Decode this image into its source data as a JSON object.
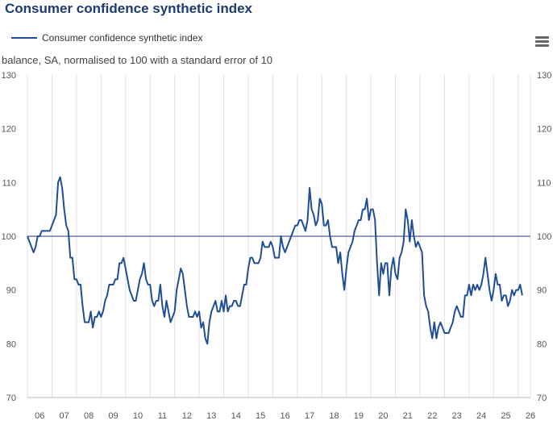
{
  "title": "Consumer confidence synthetic index",
  "subtitle": "balance, SA, normalised to 100 with a standard error of 10",
  "legend": {
    "label": "Consumer confidence synthetic index"
  },
  "menu": {
    "icon": "hamburger-menu-icon"
  },
  "colors": {
    "series": "#1f4e96",
    "grid": "#e2e2e2",
    "reference": "#1f3b73"
  },
  "chart_data": {
    "type": "line",
    "title": "Consumer confidence synthetic index",
    "ylabel": "balance, SA, normalised to 100 with a standard error of 10",
    "ylim": [
      70,
      130
    ],
    "yticks": [
      70,
      80,
      90,
      100,
      110,
      120,
      130
    ],
    "xlim": [
      2006,
      2026.5
    ],
    "xtick_labels": [
      "06",
      "07",
      "08",
      "09",
      "10",
      "11",
      "12",
      "13",
      "14",
      "15",
      "16",
      "17",
      "18",
      "19",
      "20",
      "21",
      "22",
      "23",
      "24",
      "25",
      "26"
    ],
    "reference_line": 100,
    "grid": "vertical",
    "legend_position": "top-left",
    "series": [
      {
        "name": "Consumer confidence synthetic index",
        "x_start": 2006.0,
        "x_step_months": 1,
        "values": [
          100,
          99,
          98,
          97,
          98,
          100,
          100,
          101,
          101,
          101,
          101,
          101,
          102,
          103,
          104,
          110,
          111,
          109,
          105,
          102,
          101,
          96,
          96,
          92,
          92,
          91,
          91,
          87,
          84,
          84,
          84,
          86,
          83,
          85,
          85,
          86,
          85,
          86,
          88,
          89,
          91,
          91,
          91,
          92,
          92,
          95,
          95,
          96,
          94,
          92,
          90,
          89,
          88,
          88,
          90,
          92,
          93,
          95,
          92,
          91,
          91,
          88,
          87,
          88,
          88,
          91,
          87,
          85,
          88,
          86,
          84,
          85,
          86,
          90,
          92,
          94,
          93,
          90,
          87,
          85,
          85,
          85,
          86,
          85,
          86,
          83,
          84,
          81,
          80,
          84,
          86,
          87,
          88,
          86,
          86,
          88,
          86,
          89,
          86,
          87,
          87,
          88,
          88,
          87,
          87,
          89,
          91,
          91,
          94,
          96,
          96,
          95,
          95,
          95,
          96,
          99,
          98,
          98,
          98,
          99,
          98,
          96,
          96,
          96,
          100,
          98,
          97,
          98,
          99,
          100,
          101,
          102,
          102,
          103,
          103,
          102,
          101,
          103,
          109,
          105,
          104,
          102,
          103,
          107,
          106,
          102,
          102,
          103,
          100,
          98,
          98,
          98,
          95,
          97,
          93,
          90,
          94,
          97,
          98,
          99,
          101,
          102,
          103,
          103,
          105,
          105,
          107,
          103,
          105,
          105,
          103,
          95,
          89,
          95,
          93,
          95,
          95,
          89,
          94,
          96,
          93,
          92,
          96,
          97,
          99,
          105,
          103,
          99,
          103,
          100,
          98,
          99,
          98,
          97,
          89,
          87,
          86,
          83,
          81,
          84,
          81,
          83,
          84,
          83,
          82,
          82,
          82,
          83,
          84,
          86,
          87,
          86,
          85,
          85,
          89,
          89,
          91,
          89,
          91,
          90,
          91,
          90,
          91,
          93,
          96,
          93,
          90,
          88,
          90,
          93,
          91,
          91,
          88,
          89,
          89,
          87,
          88,
          90,
          89,
          90,
          90,
          91,
          89
        ]
      }
    ]
  }
}
